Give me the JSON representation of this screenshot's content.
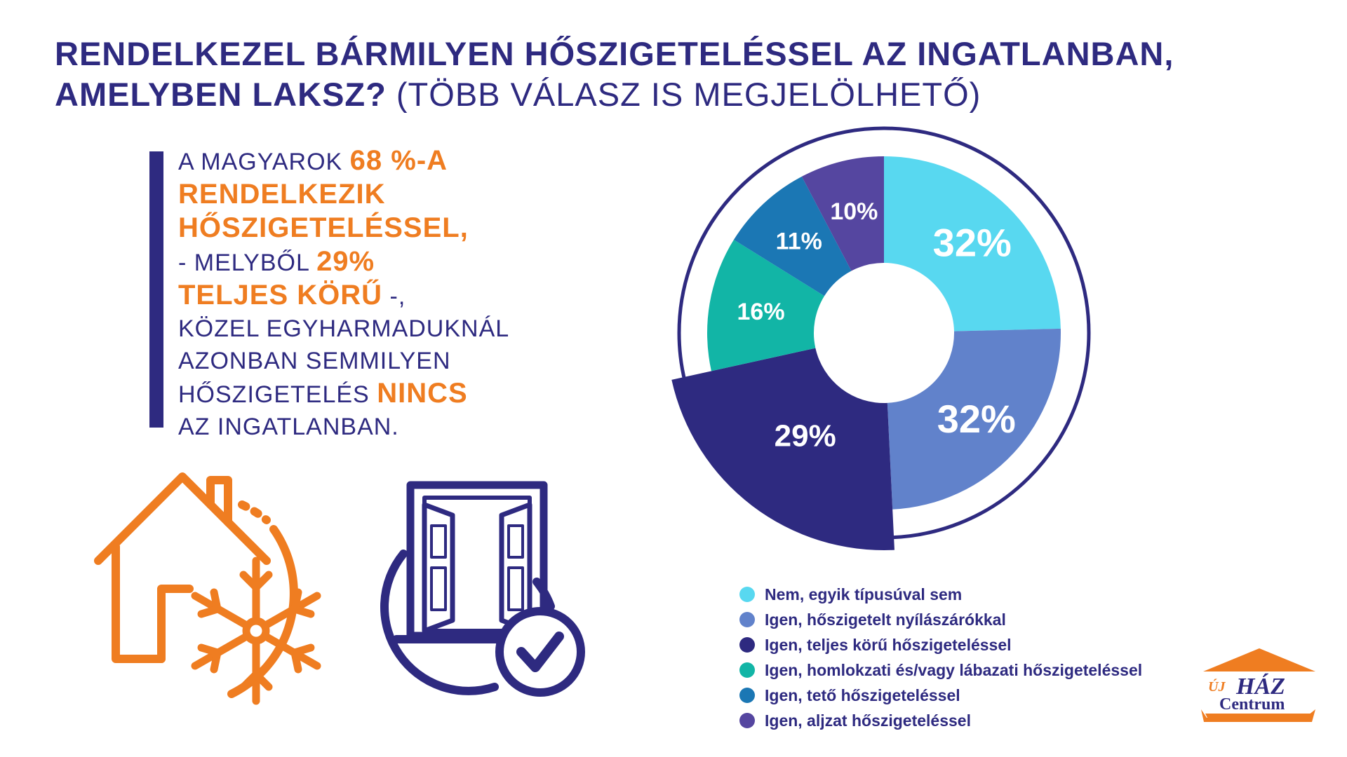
{
  "title": {
    "line1": "RENDELKEZEL BÁRMILYEN HŐSZIGETELÉSSEL AZ INGATLANBAN,",
    "line2_bold": "AMELYBEN LAKSZ?",
    "line2_light": " (TÖBB VÁLASZ IS MEGJELÖLHETŐ)"
  },
  "quote": {
    "p1": "A MAGYAROK ",
    "p2": "68 %-A",
    "p3": "RENDELKEZIK HŐSZIGETELÉSSEL,",
    "p4": "- MELYBŐL  ",
    "p5": "29%",
    "p6": "TELJES KÖRŰ",
    "p7": " -,",
    "p8": "KÖZEL EGYHARMADUKNÁL AZONBAN SEMMILYEN HŐSZIGETELÉS ",
    "p9": "NINCS",
    "p10": "AZ INGATLANBAN."
  },
  "chart_data": {
    "type": "pie",
    "categories": [
      "Nem, egyik típusúval sem",
      "Igen, hőszigetelt nyílászárókkal",
      "Igen, teljes körű hőszigeteléssel",
      "Igen, homlokzati és/vagy lábazati hőszigeteléssel",
      "Igen, tető hőszigeteléssel",
      "Igen, aljzat hőszigeteléssel"
    ],
    "values": [
      32,
      32,
      29,
      16,
      11,
      10
    ],
    "data_labels": [
      "32%",
      "32%",
      "29%",
      "16%",
      "11%",
      "10%"
    ],
    "colors": [
      "#58d8f0",
      "#6182cb",
      "#2e2a80",
      "#12b5a6",
      "#1b77b4",
      "#5546a0"
    ],
    "highlighted": "Igen, teljes körű hőszigeteléssel",
    "legend_position": "bottom"
  },
  "logo": {
    "line1a": "ÚJ",
    "line1b": "HÁZ",
    "line2": "Centrum",
    "color": "#ef7d21"
  },
  "colors": {
    "primary": "#2e2a80",
    "accent": "#ef7d21"
  },
  "icons": [
    "house-snowflake-icon",
    "window-checkmark-icon"
  ]
}
